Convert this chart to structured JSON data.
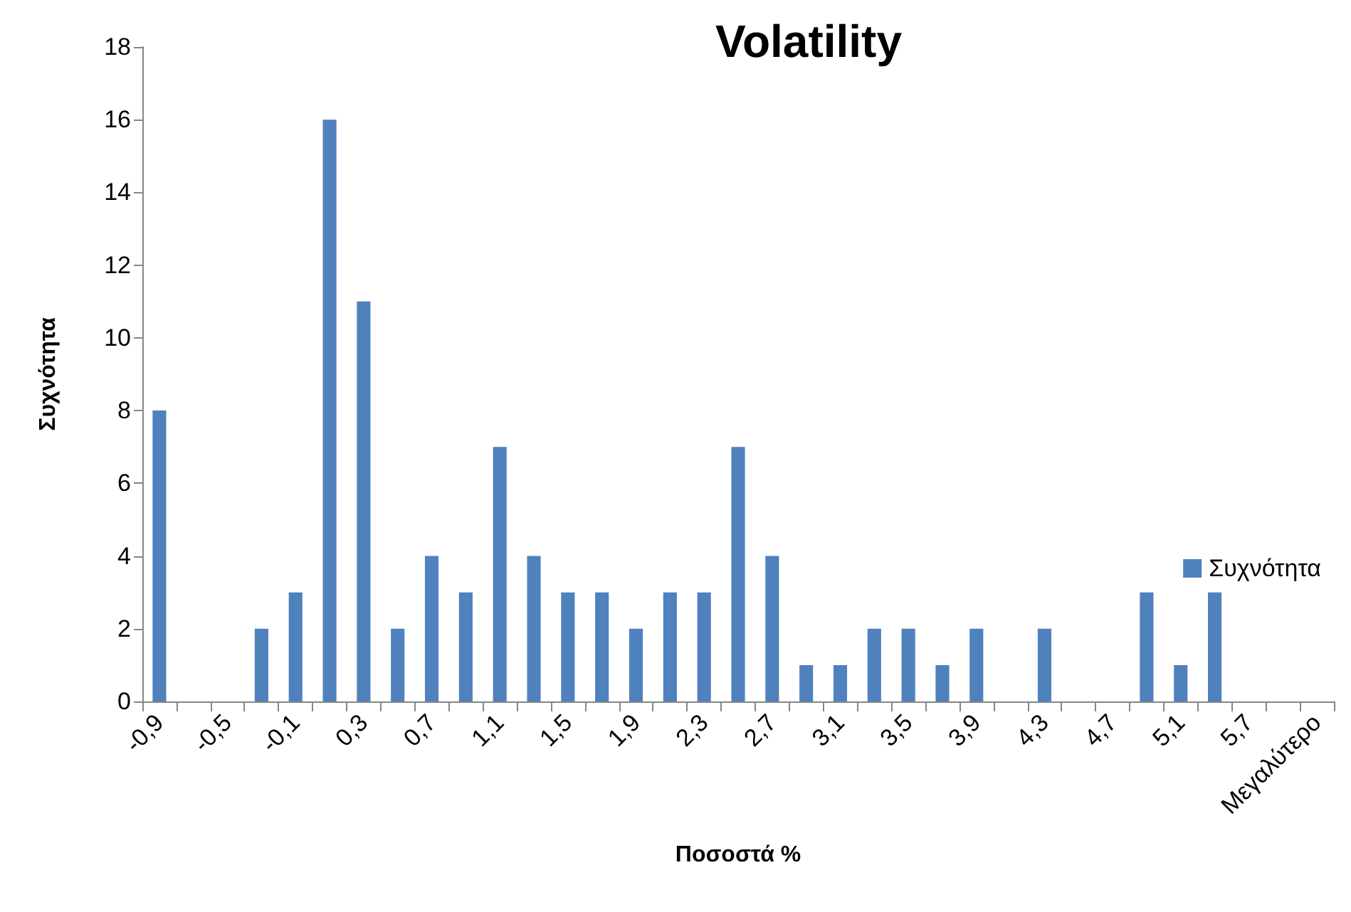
{
  "chart_data": {
    "type": "bar",
    "title": "Volatility",
    "xlabel": "Ποσοστά %",
    "ylabel": "Συχνότητα",
    "categories": [
      "-0,9",
      null,
      "-0,5",
      null,
      "-0,1",
      null,
      "0,3",
      null,
      "0,7",
      null,
      "1,1",
      null,
      "1,5",
      null,
      "1,9",
      null,
      "2,3",
      null,
      "2,7",
      null,
      "3,1",
      null,
      "3,5",
      null,
      "3,9",
      null,
      "4,3",
      null,
      "4,7",
      null,
      "5,1",
      null,
      "5,7",
      null,
      "Μεγαλύτερο"
    ],
    "series": [
      {
        "name": "Συχνότητα",
        "color": "#4f81bd",
        "values": [
          8,
          0,
          0,
          2,
          3,
          16,
          11,
          2,
          4,
          3,
          7,
          4,
          3,
          3,
          2,
          3,
          3,
          7,
          4,
          1,
          1,
          2,
          2,
          1,
          2,
          0,
          2,
          0,
          0,
          3,
          1,
          3,
          0,
          0,
          0
        ]
      }
    ],
    "ylim": [
      0,
      18
    ],
    "yticks": [
      0,
      2,
      4,
      6,
      8,
      10,
      12,
      14,
      16,
      18
    ],
    "grid": false,
    "legend": "right"
  }
}
